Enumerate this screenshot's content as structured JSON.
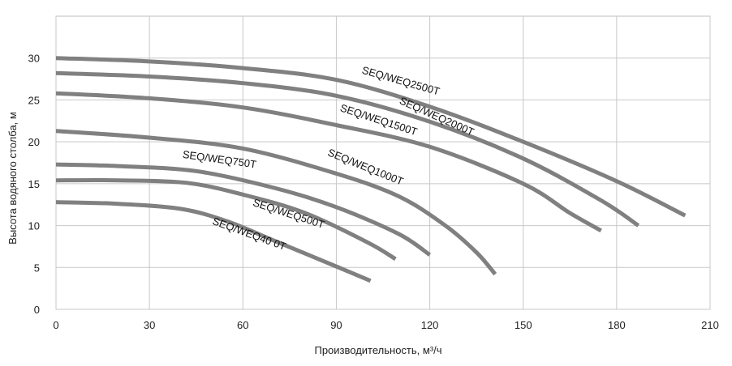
{
  "chart_data": {
    "type": "line",
    "xlabel": "Производительность, м³/ч",
    "ylabel": "Высота водяного столба, м",
    "xlim": [
      0,
      210
    ],
    "ylim": [
      0,
      35
    ],
    "xticks": [
      0,
      30,
      60,
      90,
      120,
      150,
      180,
      210
    ],
    "yticks": [
      0,
      5,
      10,
      15,
      20,
      25,
      30
    ],
    "grid": true,
    "line_color": "#808080",
    "series": [
      {
        "name": "SEQ/WEQ2500T",
        "points": [
          [
            0,
            30
          ],
          [
            30,
            29.6
          ],
          [
            60,
            28.8
          ],
          [
            90,
            27.4
          ],
          [
            120,
            24.2
          ],
          [
            150,
            20
          ],
          [
            180,
            15.3
          ],
          [
            202,
            11.2
          ]
        ]
      },
      {
        "name": "SEQ/WEQ2000T",
        "points": [
          [
            0,
            28.2
          ],
          [
            30,
            27.8
          ],
          [
            60,
            27
          ],
          [
            90,
            25.5
          ],
          [
            120,
            22.4
          ],
          [
            150,
            18
          ],
          [
            175,
            13
          ],
          [
            187,
            10
          ]
        ]
      },
      {
        "name": "SEQ/WEQ1500T",
        "points": [
          [
            0,
            25.8
          ],
          [
            30,
            25.2
          ],
          [
            60,
            24.1
          ],
          [
            90,
            22
          ],
          [
            120,
            19.4
          ],
          [
            150,
            15
          ],
          [
            165,
            11.5
          ],
          [
            175,
            9.4
          ]
        ]
      },
      {
        "name": "SEQ/WEQ1000T",
        "points": [
          [
            0,
            21.3
          ],
          [
            30,
            20.5
          ],
          [
            60,
            19.2
          ],
          [
            90,
            16.2
          ],
          [
            110,
            13.5
          ],
          [
            125,
            10
          ],
          [
            135,
            6.8
          ],
          [
            141,
            4.2
          ]
        ]
      },
      {
        "name": "SEQ/WEQ750T",
        "points": [
          [
            0,
            17.3
          ],
          [
            20,
            17.1
          ],
          [
            45,
            16.5
          ],
          [
            70,
            14.5
          ],
          [
            90,
            12.2
          ],
          [
            110,
            9
          ],
          [
            120,
            6.5
          ]
        ]
      },
      {
        "name": "SEQ/WEQ500T",
        "points": [
          [
            0,
            15.4
          ],
          [
            20,
            15.4
          ],
          [
            42,
            15.1
          ],
          [
            60,
            13.7
          ],
          [
            80,
            11.5
          ],
          [
            100,
            8
          ],
          [
            109,
            6
          ]
        ]
      },
      {
        "name": "SEQ/WEQ40 0T",
        "points": [
          [
            0,
            12.8
          ],
          [
            20,
            12.6
          ],
          [
            40,
            12
          ],
          [
            55,
            10.5
          ],
          [
            70,
            8.2
          ],
          [
            83,
            6.2
          ],
          [
            101,
            3.4
          ]
        ]
      }
    ]
  },
  "labels": [
    {
      "text": "SEQ/WEQ2500T",
      "x": 98,
      "y": 28.2,
      "angle": 16
    },
    {
      "text": "SEQ/WEQ2000T",
      "x": 110,
      "y": 24.6,
      "angle": 24
    },
    {
      "text": "SEQ/WEQ1500T",
      "x": 91,
      "y": 23.7,
      "angle": 18
    },
    {
      "text": "SEQ/WEQ1000T",
      "x": 87,
      "y": 18.4,
      "angle": 22
    },
    {
      "text": "SEQ/WEQ750T",
      "x": 40.5,
      "y": 18.1,
      "angle": 8
    },
    {
      "text": "SEQ/WEQ500T",
      "x": 63,
      "y": 12.4,
      "angle": 18
    },
    {
      "text": "SEQ/WEQ40 0T",
      "x": 50,
      "y": 10.2,
      "angle": 20
    }
  ]
}
